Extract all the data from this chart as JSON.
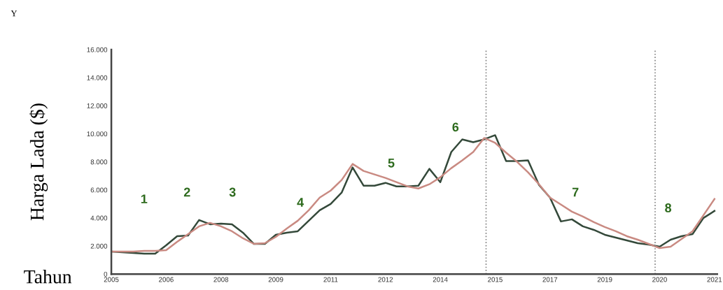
{
  "chart_data": {
    "type": "line",
    "ylabel": "Harga Lada ($)",
    "xlabel": "Tahun",
    "annotations": [
      "Y",
      "1",
      "2",
      "3",
      "4",
      "5",
      "6",
      "7",
      "8"
    ],
    "categories": [
      "2005",
      null,
      null,
      null,
      null,
      "2006",
      null,
      null,
      null,
      null,
      "2008",
      null,
      null,
      null,
      null,
      "2009",
      null,
      null,
      null,
      null,
      "2011",
      null,
      null,
      null,
      null,
      "2012",
      null,
      null,
      null,
      null,
      "2014",
      null,
      null,
      null,
      null,
      "2015",
      null,
      null,
      null,
      null,
      "2017",
      null,
      null,
      null,
      null,
      "2019",
      null,
      null,
      null,
      null,
      "2020",
      null,
      null,
      null,
      null,
      "2021"
    ],
    "ylim": [
      0,
      16000
    ],
    "yticks": [
      0,
      {
        "value": 2000,
        "label": "2.000"
      },
      {
        "value": 4000,
        "label": "4.000"
      },
      {
        "value": 6000,
        "label": "6.000"
      },
      {
        "value": 8000,
        "label": "8.000"
      },
      {
        "value": 10000,
        "label": "10.000"
      },
      {
        "value": 12000,
        "label": "12.000"
      },
      {
        "value": 14000,
        "label": "14.000"
      },
      {
        "value": 16000,
        "label": "16.000"
      }
    ],
    "grid": false,
    "legend": false,
    "marker": "none",
    "line_style": "solid",
    "series": [
      {
        "color": "#34493a",
        "values": [
          1600,
          1550,
          1500,
          1450,
          1450,
          2050,
          2700,
          2750,
          3850,
          3550,
          3600,
          3550,
          2950,
          2150,
          2150,
          2800,
          2950,
          3050,
          3800,
          4550,
          5000,
          5800,
          7600,
          6300,
          6300,
          6500,
          6250,
          6250,
          6300,
          7500,
          6550,
          8700,
          9600,
          9400,
          9600,
          9900,
          8050,
          8050,
          8100,
          6350,
          5450,
          3750,
          3900,
          3400,
          3150,
          2800,
          2600,
          2400,
          2200,
          2100,
          1950,
          2450,
          2700,
          2850,
          4000,
          4500
        ]
      },
      {
        "color": "#c98a82",
        "values": [
          1600,
          1600,
          1600,
          1650,
          1650,
          1700,
          2300,
          2850,
          3400,
          3650,
          3400,
          3050,
          2550,
          2150,
          2200,
          2650,
          3250,
          3800,
          4550,
          5450,
          5950,
          6700,
          7850,
          7350,
          7100,
          6850,
          6550,
          6250,
          6100,
          6400,
          6900,
          7550,
          8100,
          8700,
          9700,
          9350,
          8650,
          8000,
          7250,
          6400,
          5450,
          4950,
          4450,
          4100,
          3700,
          3350,
          3050,
          2700,
          2450,
          2150,
          1850,
          1950,
          2500,
          3050,
          4200,
          5350
        ]
      }
    ]
  }
}
